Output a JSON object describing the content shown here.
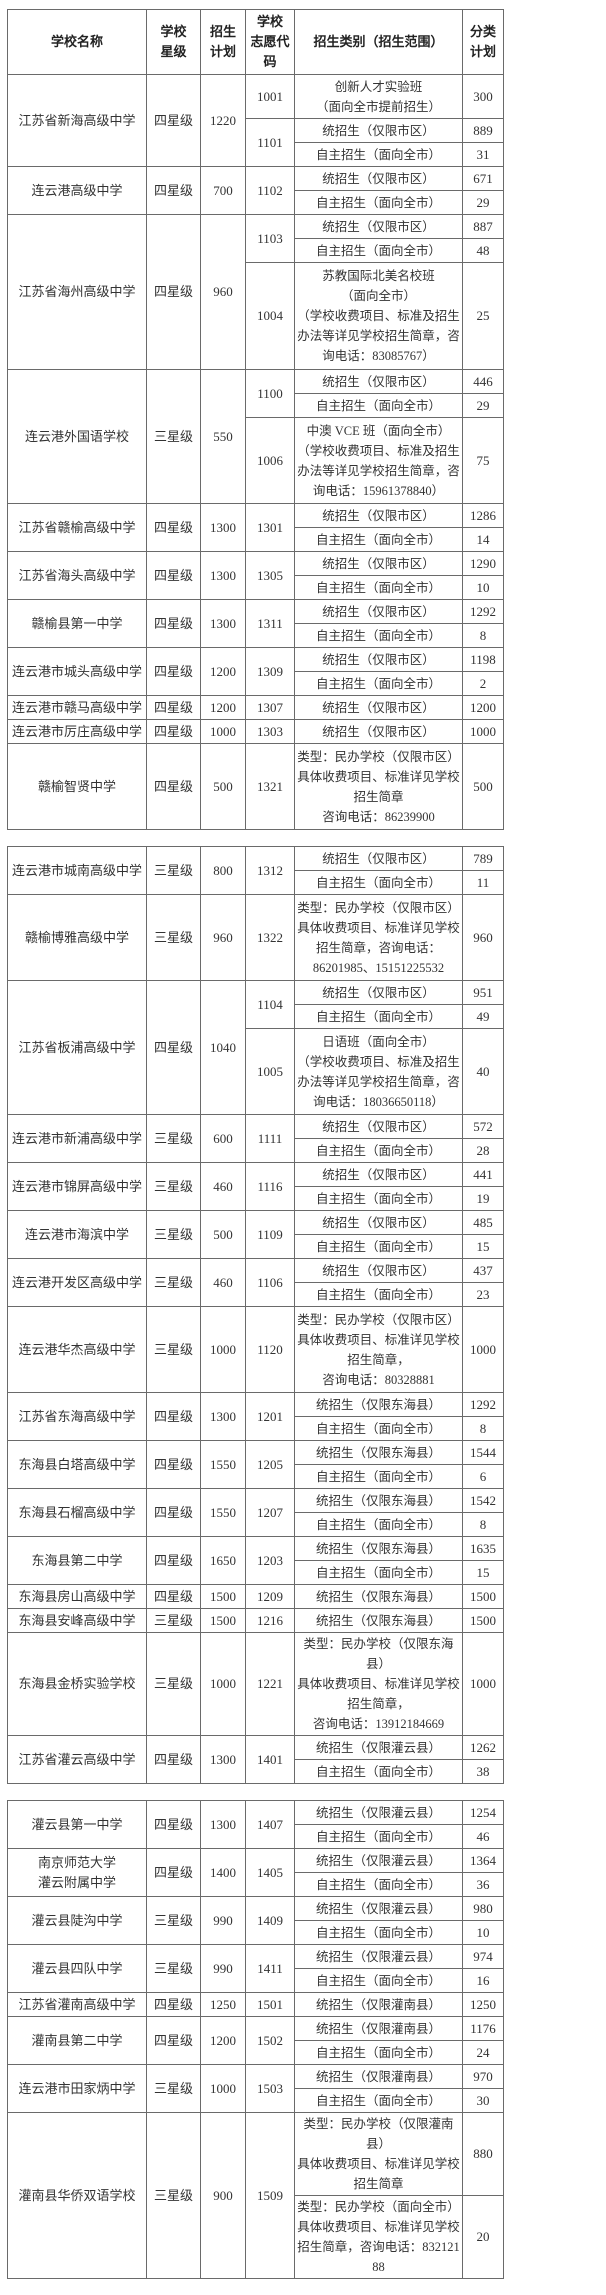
{
  "header": {
    "name": "学校名称",
    "star": "学校\n星级",
    "plan": "招生\n计划",
    "code": "学校\n志愿代\n码",
    "category": "招生类别（招生范围）",
    "count": "分类\n计划"
  },
  "tables": [
    {
      "schools": [
        {
          "name": "江苏省新海高级中学",
          "star": "四星级",
          "plan": "1220",
          "groups": [
            {
              "code": "1001",
              "items": [
                {
                  "category": "创新人才实验班\n（面向全市提前招生）",
                  "count": "300"
                }
              ]
            },
            {
              "code": "1101",
              "items": [
                {
                  "category": "统招生（仅限市区）",
                  "count": "889"
                },
                {
                  "category": "自主招生（面向全市）",
                  "count": "31"
                }
              ]
            }
          ]
        },
        {
          "name": "连云港高级中学",
          "star": "四星级",
          "plan": "700",
          "groups": [
            {
              "code": "1102",
              "items": [
                {
                  "category": "统招生（仅限市区）",
                  "count": "671"
                },
                {
                  "category": "自主招生（面向全市）",
                  "count": "29"
                }
              ]
            }
          ]
        },
        {
          "name": "江苏省海州高级中学",
          "star": "四星级",
          "plan": "960",
          "groups": [
            {
              "code": "1103",
              "items": [
                {
                  "category": "统招生（仅限市区）",
                  "count": "887"
                },
                {
                  "category": "自主招生（面向全市）",
                  "count": "48"
                }
              ]
            },
            {
              "code": "1004",
              "items": [
                {
                  "category": "苏教国际北美名校班\n（面向全市）\n（学校收费项目、标准及招生\n办法等详见学校招生简章，咨\n询电话：83085767）",
                  "count": "25"
                }
              ]
            }
          ]
        },
        {
          "name": "连云港外国语学校",
          "star": "三星级",
          "plan": "550",
          "groups": [
            {
              "code": "1100",
              "items": [
                {
                  "category": "统招生（仅限市区）",
                  "count": "446"
                },
                {
                  "category": "自主招生（面向全市）",
                  "count": "29"
                }
              ]
            },
            {
              "code": "1006",
              "items": [
                {
                  "category": "中澳 VCE 班（面向全市）\n（学校收费项目、标准及招生\n办法等详见学校招生简章，咨\n询电话：15961378840）",
                  "count": "75"
                }
              ]
            }
          ]
        },
        {
          "name": "江苏省赣榆高级中学",
          "star": "四星级",
          "plan": "1300",
          "groups": [
            {
              "code": "1301",
              "items": [
                {
                  "category": "统招生（仅限市区）",
                  "count": "1286"
                },
                {
                  "category": "自主招生（面向全市）",
                  "count": "14"
                }
              ]
            }
          ]
        },
        {
          "name": "江苏省海头高级中学",
          "star": "四星级",
          "plan": "1300",
          "groups": [
            {
              "code": "1305",
              "items": [
                {
                  "category": "统招生（仅限市区）",
                  "count": "1290"
                },
                {
                  "category": "自主招生（面向全市）",
                  "count": "10"
                }
              ]
            }
          ]
        },
        {
          "name": "赣榆县第一中学",
          "star": "四星级",
          "plan": "1300",
          "groups": [
            {
              "code": "1311",
              "items": [
                {
                  "category": "统招生（仅限市区）",
                  "count": "1292"
                },
                {
                  "category": "自主招生（面向全市）",
                  "count": "8"
                }
              ]
            }
          ]
        },
        {
          "name": "连云港市城头高级中学",
          "star": "四星级",
          "plan": "1200",
          "groups": [
            {
              "code": "1309",
              "items": [
                {
                  "category": "统招生（仅限市区）",
                  "count": "1198"
                },
                {
                  "category": "自主招生（面向全市）",
                  "count": "2"
                }
              ]
            }
          ]
        },
        {
          "name": "连云港市赣马高级中学",
          "star": "四星级",
          "plan": "1200",
          "groups": [
            {
              "code": "1307",
              "items": [
                {
                  "category": "统招生（仅限市区）",
                  "count": "1200"
                }
              ]
            }
          ]
        },
        {
          "name": "连云港市厉庄高级中学",
          "star": "四星级",
          "plan": "1000",
          "groups": [
            {
              "code": "1303",
              "items": [
                {
                  "category": "统招生（仅限市区）",
                  "count": "1000"
                }
              ]
            }
          ]
        },
        {
          "name": "赣榆智贤中学",
          "star": "四星级",
          "plan": "500",
          "groups": [
            {
              "code": "1321",
              "items": [
                {
                  "category": "类型：民办学校（仅限市区）\n具体收费项目、标准详见学校\n招生简章\n咨询电话：86239900",
                  "count": "500"
                }
              ]
            }
          ]
        }
      ]
    },
    {
      "schools": [
        {
          "name": "连云港市城南高级中学",
          "star": "三星级",
          "plan": "800",
          "groups": [
            {
              "code": "1312",
              "items": [
                {
                  "category": "统招生（仅限市区）",
                  "count": "789"
                },
                {
                  "category": "自主招生（面向全市）",
                  "count": "11"
                }
              ]
            }
          ]
        },
        {
          "name": "赣榆博雅高级中学",
          "star": "三星级",
          "plan": "960",
          "groups": [
            {
              "code": "1322",
              "items": [
                {
                  "category": "类型：民办学校（仅限市区）\n具体收费项目、标准详见学校\n招生简章，咨询电话：\n86201985、15151225532",
                  "count": "960"
                }
              ]
            }
          ]
        },
        {
          "name": "江苏省板浦高级中学",
          "star": "四星级",
          "plan": "1040",
          "groups": [
            {
              "code": "1104",
              "items": [
                {
                  "category": "统招生（仅限市区）",
                  "count": "951"
                },
                {
                  "category": "自主招生（面向全市）",
                  "count": "49"
                }
              ]
            },
            {
              "code": "1005",
              "items": [
                {
                  "category": "日语班（面向全市）\n（学校收费项目、标准及招生\n办法等详见学校招生简章，咨\n询电话：18036650118）",
                  "count": "40"
                }
              ]
            }
          ]
        },
        {
          "name": "连云港市新浦高级中学",
          "star": "三星级",
          "plan": "600",
          "groups": [
            {
              "code": "1111",
              "items": [
                {
                  "category": "统招生（仅限市区）",
                  "count": "572"
                },
                {
                  "category": "自主招生（面向全市）",
                  "count": "28"
                }
              ]
            }
          ]
        },
        {
          "name": "连云港市锦屏高级中学",
          "star": "三星级",
          "plan": "460",
          "groups": [
            {
              "code": "1116",
              "items": [
                {
                  "category": "统招生（仅限市区）",
                  "count": "441"
                },
                {
                  "category": "自主招生（面向全市）",
                  "count": "19"
                }
              ]
            }
          ]
        },
        {
          "name": "连云港市海滨中学",
          "star": "三星级",
          "plan": "500",
          "groups": [
            {
              "code": "1109",
              "items": [
                {
                  "category": "统招生（仅限市区）",
                  "count": "485"
                },
                {
                  "category": "自主招生（面向全市）",
                  "count": "15"
                }
              ]
            }
          ]
        },
        {
          "name": "连云港开发区高级中学",
          "star": "三星级",
          "plan": "460",
          "groups": [
            {
              "code": "1106",
              "items": [
                {
                  "category": "统招生（仅限市区）",
                  "count": "437"
                },
                {
                  "category": "自主招生（面向全市）",
                  "count": "23"
                }
              ]
            }
          ]
        },
        {
          "name": "连云港华杰高级中学",
          "star": "三星级",
          "plan": "1000",
          "groups": [
            {
              "code": "1120",
              "items": [
                {
                  "category": "类型：民办学校（仅限市区）\n具体收费项目、标准详见学校\n招生简章，\n咨询电话：80328881",
                  "count": "1000"
                }
              ]
            }
          ]
        },
        {
          "name": "江苏省东海高级中学",
          "star": "四星级",
          "plan": "1300",
          "groups": [
            {
              "code": "1201",
              "items": [
                {
                  "category": "统招生（仅限东海县）",
                  "count": "1292"
                },
                {
                  "category": "自主招生（面向全市）",
                  "count": "8"
                }
              ]
            }
          ]
        },
        {
          "name": "东海县白塔高级中学",
          "star": "四星级",
          "plan": "1550",
          "groups": [
            {
              "code": "1205",
              "items": [
                {
                  "category": "统招生（仅限东海县）",
                  "count": "1544"
                },
                {
                  "category": "自主招生（面向全市）",
                  "count": "6"
                }
              ]
            }
          ]
        },
        {
          "name": "东海县石榴高级中学",
          "star": "四星级",
          "plan": "1550",
          "groups": [
            {
              "code": "1207",
              "items": [
                {
                  "category": "统招生（仅限东海县）",
                  "count": "1542"
                },
                {
                  "category": "自主招生（面向全市）",
                  "count": "8"
                }
              ]
            }
          ]
        },
        {
          "name": "东海县第二中学",
          "star": "四星级",
          "plan": "1650",
          "groups": [
            {
              "code": "1203",
              "items": [
                {
                  "category": "统招生（仅限东海县）",
                  "count": "1635"
                },
                {
                  "category": "自主招生（面向全市）",
                  "count": "15"
                }
              ]
            }
          ]
        },
        {
          "name": "东海县房山高级中学",
          "star": "四星级",
          "plan": "1500",
          "groups": [
            {
              "code": "1209",
              "items": [
                {
                  "category": "统招生（仅限东海县）",
                  "count": "1500"
                }
              ]
            }
          ]
        },
        {
          "name": "东海县安峰高级中学",
          "star": "三星级",
          "plan": "1500",
          "groups": [
            {
              "code": "1216",
              "items": [
                {
                  "category": "统招生（仅限东海县）",
                  "count": "1500"
                }
              ]
            }
          ]
        },
        {
          "name": "东海县金桥实验学校",
          "star": "三星级",
          "plan": "1000",
          "groups": [
            {
              "code": "1221",
              "items": [
                {
                  "category": "类型：民办学校（仅限东海县）\n具体收费项目、标准详见学校\n招生简章，\n咨询电话：13912184669",
                  "count": "1000"
                }
              ]
            }
          ]
        },
        {
          "name": "江苏省灌云高级中学",
          "star": "四星级",
          "plan": "1300",
          "groups": [
            {
              "code": "1401",
              "items": [
                {
                  "category": "统招生（仅限灌云县）",
                  "count": "1262"
                },
                {
                  "category": "自主招生（面向全市）",
                  "count": "38"
                }
              ]
            }
          ]
        }
      ]
    },
    {
      "schools": [
        {
          "name": "灌云县第一中学",
          "star": "四星级",
          "plan": "1300",
          "groups": [
            {
              "code": "1407",
              "items": [
                {
                  "category": "统招生（仅限灌云县）",
                  "count": "1254"
                },
                {
                  "category": "自主招生（面向全市）",
                  "count": "46"
                }
              ]
            }
          ]
        },
        {
          "name": "南京师范大学\n灌云附属中学",
          "star": "四星级",
          "plan": "1400",
          "groups": [
            {
              "code": "1405",
              "items": [
                {
                  "category": "统招生（仅限灌云县）",
                  "count": "1364"
                },
                {
                  "category": "自主招生（面向全市）",
                  "count": "36"
                }
              ]
            }
          ]
        },
        {
          "name": "灌云县陡沟中学",
          "star": "三星级",
          "plan": "990",
          "groups": [
            {
              "code": "1409",
              "items": [
                {
                  "category": "统招生（仅限灌云县）",
                  "count": "980"
                },
                {
                  "category": "自主招生（面向全市）",
                  "count": "10"
                }
              ]
            }
          ]
        },
        {
          "name": "灌云县四队中学",
          "star": "三星级",
          "plan": "990",
          "groups": [
            {
              "code": "1411",
              "items": [
                {
                  "category": "统招生（仅限灌云县）",
                  "count": "974"
                },
                {
                  "category": "自主招生（面向全市）",
                  "count": "16"
                }
              ]
            }
          ]
        },
        {
          "name": "江苏省灌南高级中学",
          "star": "四星级",
          "plan": "1250",
          "groups": [
            {
              "code": "1501",
              "items": [
                {
                  "category": "统招生（仅限灌南县）",
                  "count": "1250"
                }
              ]
            }
          ]
        },
        {
          "name": "灌南县第二中学",
          "star": "四星级",
          "plan": "1200",
          "groups": [
            {
              "code": "1502",
              "items": [
                {
                  "category": "统招生（仅限灌南县）",
                  "count": "1176"
                },
                {
                  "category": "自主招生（面向全市）",
                  "count": "24"
                }
              ]
            }
          ]
        },
        {
          "name": "连云港市田家炳中学",
          "star": "三星级",
          "plan": "1000",
          "groups": [
            {
              "code": "1503",
              "items": [
                {
                  "category": "统招生（仅限灌南县）",
                  "count": "970"
                },
                {
                  "category": "自主招生（面向全市）",
                  "count": "30"
                }
              ]
            }
          ]
        },
        {
          "name": "灌南县华侨双语学校",
          "star": "三星级",
          "plan": "900",
          "groups": [
            {
              "code": "1509",
              "items": [
                {
                  "category": "类型：民办学校（仅限灌南县）\n具体收费项目、标准详见学校\n招生简章",
                  "count": "880"
                },
                {
                  "category": "类型：民办学校（面向全市）\n具体收费项目、标准详见学校\n招生简章，咨询电话：83212188",
                  "count": "20"
                }
              ]
            }
          ]
        }
      ]
    }
  ]
}
